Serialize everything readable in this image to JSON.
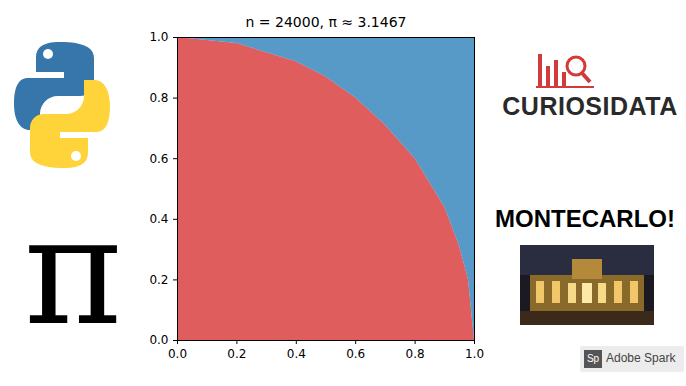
{
  "chart_data": {
    "type": "area",
    "title": "n = 24000, π ≈ 3.1467",
    "x": [
      0,
      0.1,
      0.2,
      0.3,
      0.4,
      0.5,
      0.6,
      0.7,
      0.8,
      0.9,
      0.95,
      0.98,
      1.0
    ],
    "series": [
      {
        "color": "#d62728",
        "values": [
          1,
          0.99,
          0.98,
          0.95,
          0.92,
          0.87,
          0.8,
          0.71,
          0.6,
          0.44,
          0.31,
          0.2,
          0
        ]
      },
      {
        "color": "#1f77b4",
        "values": [
          0,
          0.01,
          0.02,
          0.05,
          0.08,
          0.13,
          0.2,
          0.29,
          0.4,
          0.56,
          0.69,
          0.8,
          1
        ]
      }
    ],
    "stacked": true,
    "grid": false,
    "xlim": [
      0,
      1
    ],
    "ylim": [
      0,
      1
    ],
    "xticks": [
      {
        "value": 0,
        "label": "0.0"
      },
      {
        "value": 0.2,
        "label": "0.2"
      },
      {
        "value": 0.4,
        "label": "0.4"
      },
      {
        "value": 0.6,
        "label": "0.6"
      },
      {
        "value": 0.8,
        "label": "0.8"
      },
      {
        "value": 1,
        "label": "1.0"
      }
    ],
    "yticks": [
      {
        "value": 0,
        "label": "0.0"
      },
      {
        "value": 0.2,
        "label": "0.2"
      },
      {
        "value": 0.4,
        "label": "0.4"
      },
      {
        "value": 0.6,
        "label": "0.6"
      },
      {
        "value": 0.8,
        "label": "0.8"
      },
      {
        "value": 1,
        "label": "1.0"
      }
    ]
  },
  "page": {
    "symbol": "π",
    "brand": "CURIOSIDATA",
    "headline": "MONTECARLO!",
    "badge": {
      "icon": "Sp",
      "text": "Adobe Spark"
    }
  }
}
